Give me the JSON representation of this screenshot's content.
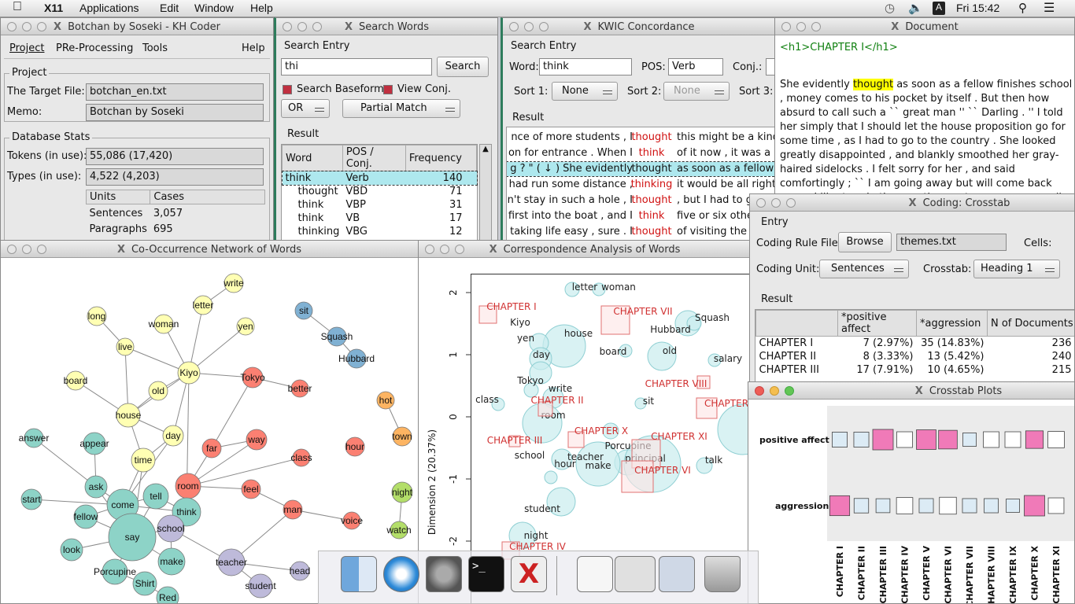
{
  "menubar": {
    "apple": "",
    "app": "X11",
    "items": [
      "Applications",
      "Edit",
      "Window",
      "Help"
    ],
    "clock": "Fri 15:42",
    "input_source": "A"
  },
  "kh": {
    "title": "Botchan by Soseki - KH Coder",
    "menus": [
      "Project",
      "PRe-Processing",
      "Tools",
      "Help"
    ],
    "project_group": "Project",
    "target_label": "The Target File:",
    "target_value": "botchan_en.txt",
    "memo_label": "Memo:",
    "memo_value": "Botchan by Soseki",
    "db_group": "Database Stats",
    "tokens_label": "Tokens (in use):",
    "tokens_value": "55,086 (17,420)",
    "types_label": "Types (in use):",
    "types_value": "4,522 (4,203)",
    "units_headers": [
      "Units",
      "Cases"
    ],
    "units_rows": [
      [
        "Sentences",
        "3,057"
      ],
      [
        "Paragraphs",
        "695"
      ]
    ]
  },
  "search": {
    "title": "Search Words",
    "entry_group": "Search Entry",
    "query": "thi",
    "search_button": "Search",
    "baseform_label": "Search Baseform",
    "viewconj_label": "View Conj.",
    "or_select": "OR",
    "match_select": "Partial Match",
    "result_group": "Result",
    "headers": [
      "Word",
      "POS / Conj.",
      "Frequency"
    ],
    "rows": [
      [
        "think",
        "Verb",
        "140"
      ],
      [
        "thought",
        "VBD",
        "71"
      ],
      [
        "think",
        "VBP",
        "31"
      ],
      [
        "think",
        "VB",
        "17"
      ],
      [
        "thinking",
        "VBG",
        "12"
      ]
    ]
  },
  "kwic": {
    "title": "KWIC Concordance",
    "entry_group": "Search Entry",
    "word_label": "Word:",
    "word_value": "think",
    "pos_label": "POS:",
    "pos_value": "Verb",
    "conj_label": "Conj.:",
    "sort1_label": "Sort 1:",
    "sort1_value": "None",
    "sort2_label": "Sort 2:",
    "sort2_value": "None",
    "sort3_label": "Sort 3:",
    "result_group": "Result",
    "lines": [
      {
        "l": "nce of more students , I",
        "k": "thought",
        "r": "this might be a kind of"
      },
      {
        "l": "on for entrance . When I",
        "k": "think",
        "r": "of it now , it was a blur"
      },
      {
        "l": "g ? \" ( ↓ )  She evidently",
        "k": "thought",
        "r": "as soon as a fellow fini"
      },
      {
        "l": "had run some distance ,",
        "k": "thinking",
        "r": "it would be all right no"
      },
      {
        "l": "n't stay in such a hole , I",
        "k": "thought",
        "r": ", but I had to get"
      },
      {
        "l": "first into the boat , and I",
        "k": "think",
        "r": "five or six others"
      },
      {
        "l": "taking life easy , sure . I",
        "k": "thought",
        "r": "of visiting the prin"
      }
    ]
  },
  "doc": {
    "title": "Document",
    "heading": "<h1>CHAPTER I</h1>",
    "before": "She evidently ",
    "highlight": "thought",
    "after": " as soon as a fellow finishes school , money comes to his pocket by itself . But then how absurd to call such a `` great man '' `` Darling . '' I told her simply that I should let the house proposition go for some time , as I had to go to the country . She looked greatly disappointed , and blankly smoothed her gray-haired sidelocks . I felt sorry for her , and said comfortingly ; `` I am going away but will come back soon . I 'll return in the vacation next summer , sure . '' Still as she"
  },
  "coding": {
    "title": "Coding: Crosstab",
    "entry_group": "Entry",
    "rule_label": "Coding Rule File:",
    "browse_button": "Browse",
    "rule_value": "themes.txt",
    "cells_label": "Cells:",
    "unit_label": "Coding Unit:",
    "unit_value": "Sentences",
    "crosstab_label": "Crosstab:",
    "crosstab_value": "Heading 1",
    "result_group": "Result",
    "headers": [
      "",
      "*positive affect",
      "*aggression",
      "N of Documents"
    ],
    "rows": [
      [
        "CHAPTER I",
        "7",
        "(2.97%)",
        "35",
        "(14.83%)",
        "236"
      ],
      [
        "CHAPTER II",
        "8",
        "(3.33%)",
        "13",
        "(5.42%)",
        "240"
      ],
      [
        "CHAPTER III",
        "17",
        "(7.91%)",
        "10",
        "(4.65%)",
        "215"
      ]
    ]
  },
  "plots": {
    "title": "Crosstab Plots",
    "rows": [
      "positive affect",
      "aggression"
    ],
    "columns": [
      "CHAPTER I",
      "CHAPTER II",
      "CHAPTER III",
      "CHAPTER IV",
      "CHAPTER V",
      "CHAPTER VI",
      "CHAPTER VII",
      "CHAPTER VIII",
      "CHAPTER IX",
      "CHAPTER X",
      "CHAPTER XI"
    ],
    "positive_affect": [
      0.03,
      0.03,
      0.079,
      0.035,
      0.07,
      0.06,
      0.02,
      0.035,
      0.035,
      0.05,
      0.04
    ],
    "aggression": [
      0.148,
      0.054,
      0.047,
      0.08,
      0.05,
      0.09,
      0.05,
      0.05,
      0.04,
      0.16,
      0.07
    ],
    "colors": {
      "low": "#dcebf5",
      "mid": "#ffffff",
      "high": "#f07ab8"
    }
  },
  "network": {
    "title": "Co-Occurrence Network of Words",
    "nodes": [
      {
        "label": "write",
        "color": "#ffffb3"
      },
      {
        "label": "letter",
        "color": "#ffffb3"
      },
      {
        "label": "long",
        "color": "#ffffb3"
      },
      {
        "label": "woman",
        "color": "#ffffb3"
      },
      {
        "label": "yen",
        "color": "#ffffb3"
      },
      {
        "label": "live",
        "color": "#ffffb3"
      },
      {
        "label": "Kiyo",
        "color": "#ffffb3"
      },
      {
        "label": "board",
        "color": "#ffffb3"
      },
      {
        "label": "old",
        "color": "#ffffb3"
      },
      {
        "label": "house",
        "color": "#ffffb3"
      },
      {
        "label": "day",
        "color": "#ffffb3"
      },
      {
        "label": "time",
        "color": "#ffffb3"
      },
      {
        "label": "sit",
        "color": "#80b1d3"
      },
      {
        "label": "Squash",
        "color": "#80b1d3"
      },
      {
        "label": "Hubbard",
        "color": "#80b1d3"
      },
      {
        "label": "Tokyo",
        "color": "#fb8072"
      },
      {
        "label": "better",
        "color": "#fb8072"
      },
      {
        "label": "way",
        "color": "#fb8072"
      },
      {
        "label": "far",
        "color": "#fb8072"
      },
      {
        "label": "class",
        "color": "#fb8072"
      },
      {
        "label": "hour",
        "color": "#fb8072"
      },
      {
        "label": "room",
        "color": "#fb8072"
      },
      {
        "label": "feel",
        "color": "#fb8072"
      },
      {
        "label": "man",
        "color": "#fb8072"
      },
      {
        "label": "voice",
        "color": "#fb8072"
      },
      {
        "label": "hot",
        "color": "#fdb462"
      },
      {
        "label": "town",
        "color": "#fdb462"
      },
      {
        "label": "night",
        "color": "#b3de69"
      },
      {
        "label": "watch",
        "color": "#b3de69"
      },
      {
        "label": "answer",
        "color": "#8dd3c7"
      },
      {
        "label": "appear",
        "color": "#8dd3c7"
      },
      {
        "label": "start",
        "color": "#8dd3c7"
      },
      {
        "label": "ask",
        "color": "#8dd3c7"
      },
      {
        "label": "come",
        "color": "#8dd3c7"
      },
      {
        "label": "tell",
        "color": "#8dd3c7"
      },
      {
        "label": "think",
        "color": "#8dd3c7"
      },
      {
        "label": "fellow",
        "color": "#8dd3c7"
      },
      {
        "label": "say",
        "color": "#8dd3c7"
      },
      {
        "label": "look",
        "color": "#8dd3c7"
      },
      {
        "label": "make",
        "color": "#8dd3c7"
      },
      {
        "label": "Porcupine",
        "color": "#8dd3c7"
      },
      {
        "label": "Shirt",
        "color": "#8dd3c7"
      },
      {
        "label": "Red",
        "color": "#8dd3c7"
      },
      {
        "label": "school",
        "color": "#bebada"
      },
      {
        "label": "teacher",
        "color": "#bebada"
      },
      {
        "label": "student",
        "color": "#bebada"
      },
      {
        "label": "head",
        "color": "#bebada"
      }
    ]
  },
  "ca": {
    "title": "Correspondence Analysis of Words",
    "ylabel": "Dimension 2 (20.37%)",
    "yticks": [
      "2",
      "1",
      "0",
      "-1",
      "-2"
    ],
    "words": [
      "letter",
      "woman",
      "Kiyo",
      "yen",
      "house",
      "Hubbard",
      "Squash",
      "board",
      "old",
      "salary",
      "day",
      "Tokyo",
      "write",
      "class",
      "sit",
      "room",
      "Porcupine",
      "principal",
      "school",
      "teacher",
      "make",
      "hour",
      "talk",
      "student",
      "night"
    ],
    "chapters": [
      "CHAPTER I",
      "CHAPTER VII",
      "CHAPTER VIII",
      "CHAPTER II",
      "CHAPTER III",
      "CHAPTER X",
      "CHAPTER XI",
      "CHAPTER VI",
      "CHAPTER IV",
      "CHAPTER"
    ]
  },
  "dock": {
    "items": [
      "Finder",
      "Safari",
      "System Preferences",
      "Terminal",
      "X11",
      "Preview",
      "Keyboard Viewer",
      "Screen Sharing",
      "Trash"
    ]
  }
}
